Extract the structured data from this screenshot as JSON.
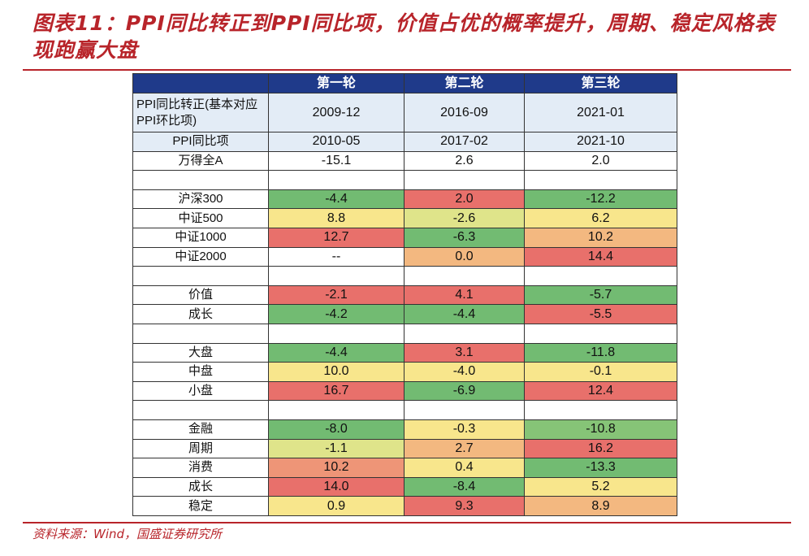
{
  "title": "图表11：PPI同比转正到PPI同比项，价值占优的概率提升，周期、稳定风格表现跑赢大盘",
  "source": "资料来源：Wind，国盛证券研究所",
  "colors": {
    "green": "#72bb72",
    "light_green": "#86c477",
    "red": "#e8706b",
    "yellow": "#f8e68c",
    "yellow_green": "#dfe48a",
    "orange": "#f3b880",
    "salmon": "#ee9577",
    "header": "#1f3a8a",
    "light_blue": "#e3ecf6",
    "accent": "#b8242a"
  },
  "table": {
    "headers": [
      "",
      "第一轮",
      "第二轮",
      "第三轮"
    ],
    "rows": [
      {
        "label": "PPI同比转正(基本对应PPI环比项)",
        "values": [
          "2009-12",
          "2016-09",
          "2021-01"
        ],
        "fills": [
          "light_blue",
          "light_blue",
          "light_blue"
        ]
      },
      {
        "label": "PPI同比项",
        "values": [
          "2010-05",
          "2017-02",
          "2021-10"
        ],
        "fills": [
          "light_blue",
          "light_blue",
          "light_blue"
        ]
      },
      {
        "label": "万得全A",
        "values": [
          "-15.1",
          "2.6",
          "2.0"
        ],
        "fills": [
          "",
          "",
          ""
        ]
      },
      {
        "label": "",
        "values": [
          "",
          "",
          ""
        ],
        "fills": [
          "",
          "",
          ""
        ]
      },
      {
        "label": "沪深300",
        "values": [
          "-4.4",
          "2.0",
          "-12.2"
        ],
        "fills": [
          "green",
          "red",
          "green"
        ]
      },
      {
        "label": "中证500",
        "values": [
          "8.8",
          "-2.6",
          "6.2"
        ],
        "fills": [
          "yellow",
          "yellow_green",
          "yellow"
        ]
      },
      {
        "label": "中证1000",
        "values": [
          "12.7",
          "-6.3",
          "10.2"
        ],
        "fills": [
          "red",
          "green",
          "orange"
        ]
      },
      {
        "label": "中证2000",
        "values": [
          "--",
          "0.0",
          "14.4"
        ],
        "fills": [
          "",
          "orange",
          "red"
        ]
      },
      {
        "label": "",
        "values": [
          "",
          "",
          ""
        ],
        "fills": [
          "",
          "",
          ""
        ]
      },
      {
        "label": "价值",
        "values": [
          "-2.1",
          "4.1",
          "-5.7"
        ],
        "fills": [
          "red",
          "red",
          "green"
        ]
      },
      {
        "label": "成长",
        "values": [
          "-4.2",
          "-4.4",
          "-5.5"
        ],
        "fills": [
          "green",
          "green",
          "red"
        ]
      },
      {
        "label": "",
        "values": [
          "",
          "",
          ""
        ],
        "fills": [
          "",
          "",
          ""
        ]
      },
      {
        "label": "大盘",
        "values": [
          "-4.4",
          "3.1",
          "-11.8"
        ],
        "fills": [
          "green",
          "red",
          "green"
        ]
      },
      {
        "label": "中盘",
        "values": [
          "10.0",
          "-4.0",
          "-0.1"
        ],
        "fills": [
          "yellow",
          "yellow",
          "yellow"
        ]
      },
      {
        "label": "小盘",
        "values": [
          "16.7",
          "-6.9",
          "12.4"
        ],
        "fills": [
          "red",
          "green",
          "red"
        ]
      },
      {
        "label": "",
        "values": [
          "",
          "",
          ""
        ],
        "fills": [
          "",
          "",
          ""
        ]
      },
      {
        "label": "金融",
        "values": [
          "-8.0",
          "-0.3",
          "-10.8"
        ],
        "fills": [
          "green",
          "yellow",
          "light_green"
        ]
      },
      {
        "label": "周期",
        "values": [
          "-1.1",
          "2.7",
          "16.2"
        ],
        "fills": [
          "yellow_green",
          "orange",
          "red"
        ]
      },
      {
        "label": "消费",
        "values": [
          "10.2",
          "0.4",
          "-13.3"
        ],
        "fills": [
          "salmon",
          "yellow",
          "green"
        ]
      },
      {
        "label": "成长",
        "values": [
          "14.0",
          "-8.4",
          "5.2"
        ],
        "fills": [
          "red",
          "green",
          "yellow"
        ]
      },
      {
        "label": "稳定",
        "values": [
          "0.9",
          "9.3",
          "8.9"
        ],
        "fills": [
          "yellow",
          "red",
          "orange"
        ]
      }
    ]
  }
}
